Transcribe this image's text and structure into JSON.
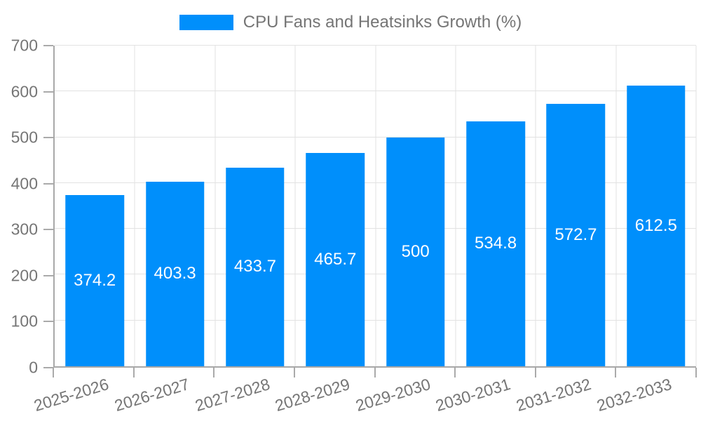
{
  "legend": {
    "label": "CPU Fans and Heatsinks Growth (%)",
    "swatch_icon": "legend-color-swatch"
  },
  "chart_data": {
    "type": "bar",
    "title": "CPU Fans and Heatsinks Growth (%)",
    "series_name": "CPU Fans and Heatsinks Growth (%)",
    "categories": [
      "2025-2026",
      "2026-2027",
      "2027-2028",
      "2028-2029",
      "2029-2030",
      "2030-2031",
      "2031-2032",
      "2032-2033"
    ],
    "values": [
      374.2,
      403.3,
      433.7,
      465.7,
      500,
      534.8,
      572.7,
      612.5
    ],
    "value_labels": [
      "374.2",
      "403.3",
      "433.7",
      "465.7",
      "500",
      "534.8",
      "572.7",
      "612.5"
    ],
    "xlabel": "",
    "ylabel": "",
    "ylim": [
      0,
      700
    ],
    "yticks": [
      0,
      100,
      200,
      300,
      400,
      500,
      600,
      700
    ],
    "grid": true,
    "legend_position": "top",
    "bar_color": "#008FFB",
    "value_label_color": "#ffffff",
    "axis_text_color": "#757575",
    "grid_color": "#e2e2e2",
    "axis_line_color": "#a8a8a8"
  }
}
